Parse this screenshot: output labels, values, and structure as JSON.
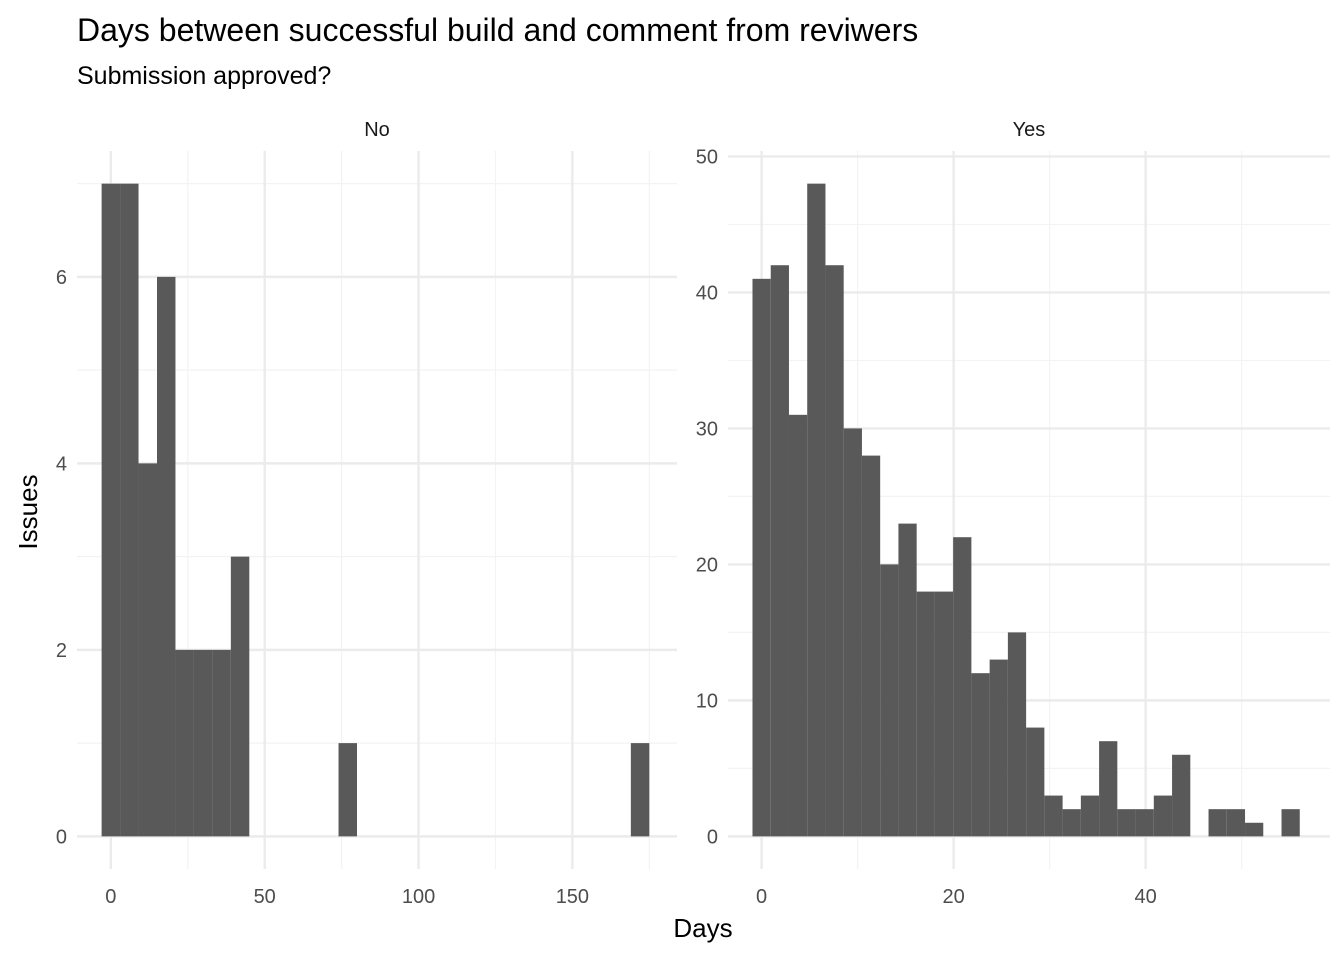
{
  "title": "Days between successful build and comment from reviwers",
  "subtitle": "Submission approved?",
  "xlabel": "Days",
  "ylabel": "Issues",
  "colors": {
    "bar": "#595959",
    "grid_major": "#ebebeb",
    "grid_minor": "#f3f3f3",
    "text": "#000000",
    "axis_text": "#4d4d4d"
  },
  "chart_data": [
    {
      "type": "bar",
      "panel": "No",
      "bin_width": 6,
      "bins": [
        {
          "x0": -3,
          "x1": 3,
          "y": 7
        },
        {
          "x0": 3,
          "x1": 9,
          "y": 7
        },
        {
          "x0": 9,
          "x1": 15,
          "y": 4
        },
        {
          "x0": 15,
          "x1": 21,
          "y": 6
        },
        {
          "x0": 21,
          "x1": 27,
          "y": 2
        },
        {
          "x0": 27,
          "x1": 33,
          "y": 2
        },
        {
          "x0": 33,
          "x1": 39,
          "y": 2
        },
        {
          "x0": 39,
          "x1": 45,
          "y": 3
        },
        {
          "x0": 74,
          "x1": 80,
          "y": 1
        },
        {
          "x0": 169,
          "x1": 175,
          "y": 1
        }
      ],
      "xlim": [
        -11,
        184
      ],
      "ylim": [
        -0.35,
        7.35
      ],
      "xticks": [
        0,
        50,
        100,
        150
      ],
      "xtick_labels": [
        "0",
        "50",
        "100",
        "150"
      ],
      "xminor": [
        25,
        75,
        125,
        175
      ],
      "yticks": [
        0,
        2,
        4,
        6
      ],
      "ytick_labels": [
        "0",
        "2",
        "4",
        "6"
      ],
      "yminor": [
        1,
        3,
        5,
        7
      ]
    },
    {
      "type": "bar",
      "panel": "Yes",
      "bin_width": 1.9,
      "bins": [
        {
          "x0": -0.95,
          "x1": 0.95,
          "y": 41
        },
        {
          "x0": 0.95,
          "x1": 2.85,
          "y": 42
        },
        {
          "x0": 2.85,
          "x1": 4.75,
          "y": 31
        },
        {
          "x0": 4.75,
          "x1": 6.65,
          "y": 48
        },
        {
          "x0": 6.65,
          "x1": 8.55,
          "y": 42
        },
        {
          "x0": 8.55,
          "x1": 10.45,
          "y": 30
        },
        {
          "x0": 10.45,
          "x1": 12.35,
          "y": 28
        },
        {
          "x0": 12.35,
          "x1": 14.25,
          "y": 20
        },
        {
          "x0": 14.25,
          "x1": 16.15,
          "y": 23
        },
        {
          "x0": 16.15,
          "x1": 18.05,
          "y": 18
        },
        {
          "x0": 18.05,
          "x1": 19.95,
          "y": 18
        },
        {
          "x0": 19.95,
          "x1": 21.85,
          "y": 22
        },
        {
          "x0": 21.85,
          "x1": 23.75,
          "y": 12
        },
        {
          "x0": 23.75,
          "x1": 25.65,
          "y": 13
        },
        {
          "x0": 25.65,
          "x1": 27.55,
          "y": 15
        },
        {
          "x0": 27.55,
          "x1": 29.45,
          "y": 8
        },
        {
          "x0": 29.45,
          "x1": 31.35,
          "y": 3
        },
        {
          "x0": 31.35,
          "x1": 33.25,
          "y": 2
        },
        {
          "x0": 33.25,
          "x1": 35.15,
          "y": 3
        },
        {
          "x0": 35.15,
          "x1": 37.05,
          "y": 7
        },
        {
          "x0": 37.05,
          "x1": 38.95,
          "y": 2
        },
        {
          "x0": 38.95,
          "x1": 40.85,
          "y": 2
        },
        {
          "x0": 40.85,
          "x1": 42.75,
          "y": 3
        },
        {
          "x0": 42.75,
          "x1": 44.65,
          "y": 6
        },
        {
          "x0": 46.55,
          "x1": 48.45,
          "y": 2
        },
        {
          "x0": 48.45,
          "x1": 50.35,
          "y": 2
        },
        {
          "x0": 50.35,
          "x1": 52.25,
          "y": 1
        },
        {
          "x0": 54.15,
          "x1": 56.05,
          "y": 2
        }
      ],
      "xlim": [
        -3.5,
        59.2
      ],
      "ylim": [
        -2.4,
        50.4
      ],
      "xticks": [
        0,
        20,
        40
      ],
      "xtick_labels": [
        "0",
        "20",
        "40"
      ],
      "xminor": [
        10,
        30,
        50
      ],
      "yticks": [
        0,
        10,
        20,
        30,
        40,
        50
      ],
      "ytick_labels": [
        "0",
        "10",
        "20",
        "30",
        "40",
        "50"
      ],
      "yminor": [
        5,
        15,
        25,
        35,
        45
      ]
    }
  ]
}
